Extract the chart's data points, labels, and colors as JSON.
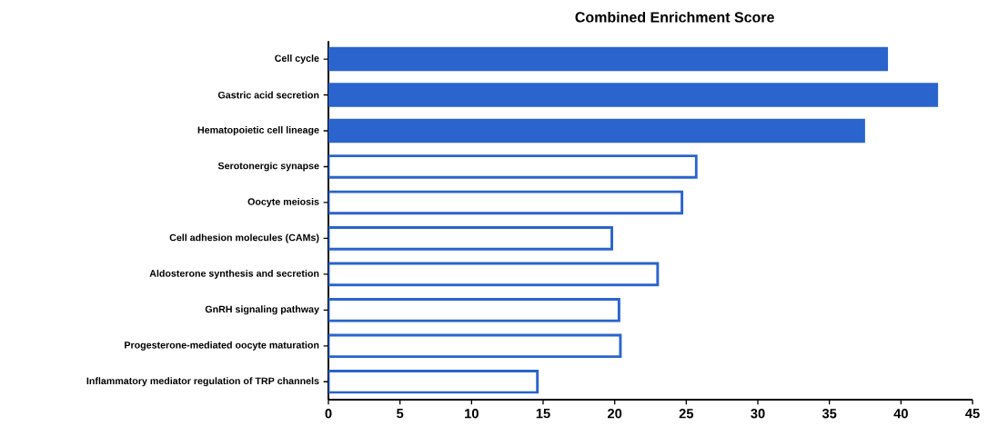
{
  "chart_data": {
    "type": "bar",
    "orientation": "horizontal",
    "title": "Combined Enrichment Score",
    "categories": [
      "Cell cycle",
      "Gastric acid secretion",
      "Hematopoietic cell lineage",
      "Serotonergic synapse",
      "Oocyte meiosis",
      "Cell adhesion molecules (CAMs)",
      "Aldosterone synthesis and secretion",
      "GnRH signaling pathway",
      "Progesterone-mediated oocyte maturation",
      "Inflammatory mediator regulation of TRP channels"
    ],
    "series": [
      {
        "color": "#2a64cc",
        "values": [
          39.0,
          42.5,
          37.4,
          25.7,
          24.7,
          19.8,
          23.0,
          20.3,
          20.4,
          14.6
        ],
        "colors": [
          "#2a64cc",
          "#2a64cc",
          "#2a64cc",
          "#ffffff",
          "#ffffff",
          "#ffffff",
          "#ffffff",
          "#ffffff",
          "#ffffff",
          "#ffffff"
        ]
      }
    ],
    "xlim": [
      0,
      45
    ],
    "xticks": [
      0,
      5,
      10,
      15,
      20,
      25,
      30,
      35,
      40,
      45
    ]
  }
}
